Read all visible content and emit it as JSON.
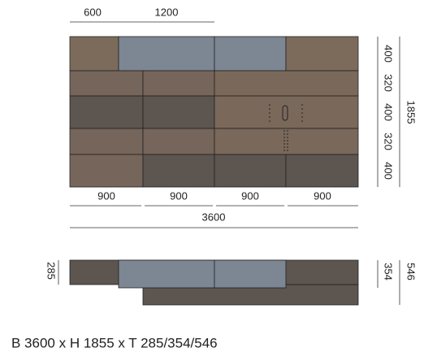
{
  "top_dims": [
    "600",
    "1200"
  ],
  "right_dims": [
    "400",
    "320",
    "400",
    "320",
    "400"
  ],
  "total_height": "1855",
  "bottom_dims": [
    "900",
    "900",
    "900",
    "900"
  ],
  "total_width": "3600",
  "side_left_dim": "285",
  "side_right_dims": [
    "354",
    "546"
  ],
  "caption": "B 3600 x H 1855 x T 285/354/546"
}
